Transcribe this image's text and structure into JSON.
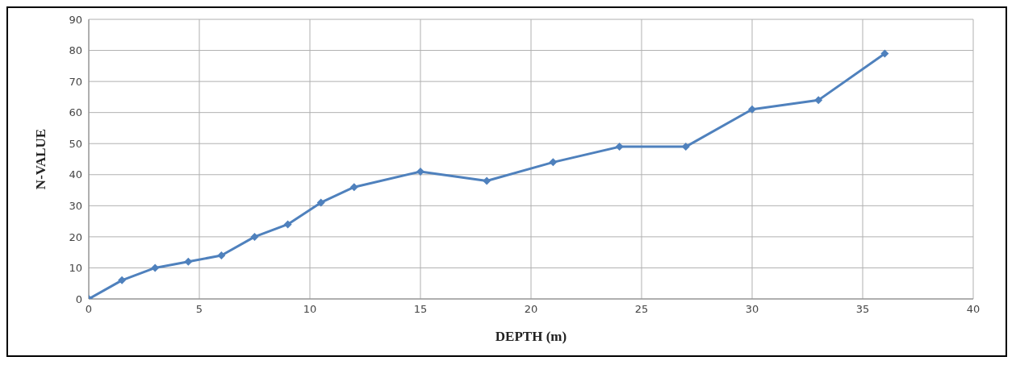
{
  "chart_data": {
    "type": "line",
    "xlabel": "DEPTH (m)",
    "ylabel": "N-VALUE",
    "x": [
      0,
      1.5,
      3,
      4.5,
      6,
      7.5,
      9,
      10.5,
      12,
      15,
      18,
      21,
      24,
      27,
      30,
      33,
      36
    ],
    "series": [
      {
        "color": "#4f81bd",
        "values": [
          0,
          6,
          10,
          12,
          14,
          20,
          24,
          31,
          36,
          41,
          38,
          44,
          49,
          49,
          61,
          64,
          79
        ]
      }
    ],
    "xlim": [
      0,
      40
    ],
    "xticks": [
      0,
      5,
      10,
      15,
      20,
      25,
      30,
      35,
      40
    ],
    "ylim": [
      0,
      90
    ],
    "yticks": [
      0,
      10,
      20,
      30,
      40,
      50,
      60,
      70,
      80,
      90
    ],
    "grid": true,
    "marker": "diamond",
    "line_style": "solid",
    "legend": false
  }
}
